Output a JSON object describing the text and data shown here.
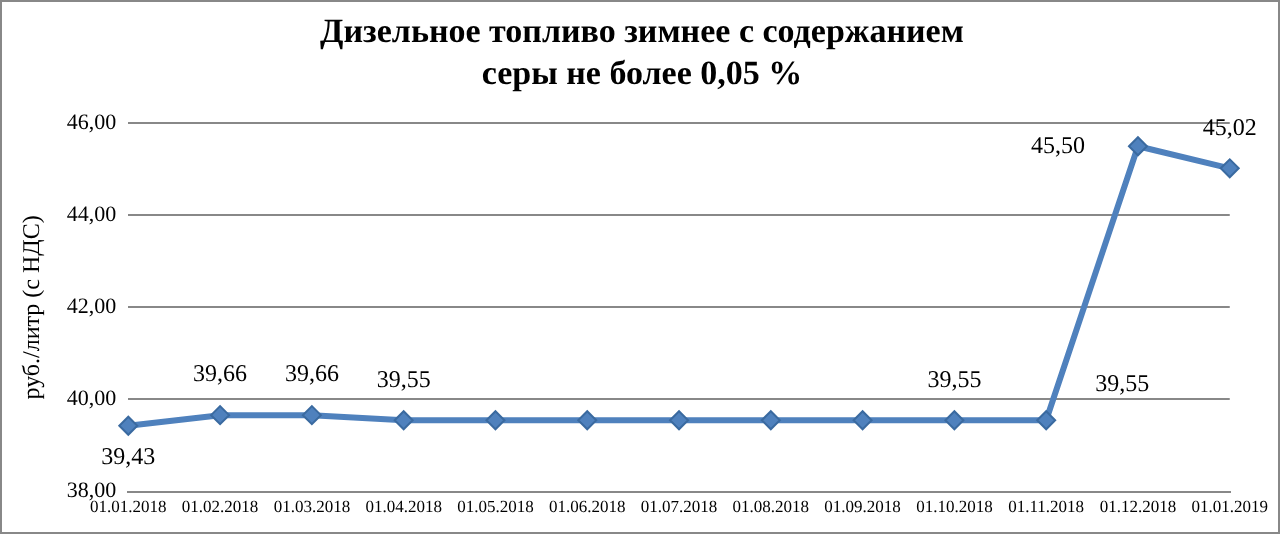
{
  "chart_data": {
    "type": "line",
    "title": "Дизельное топливо зимнее с содержанием серы не более 0,05 %",
    "ylabel": "руб./литр (с НДС)",
    "categories": [
      "01.01.2018",
      "01.02.2018",
      "01.03.2018",
      "01.04.2018",
      "01.05.2018",
      "01.06.2018",
      "01.07.2018",
      "01.08.2018",
      "01.09.2018",
      "01.10.2018",
      "01.11.2018",
      "01.12.2018",
      "01.01.2019"
    ],
    "series": [
      {
        "color": "#4f81bd",
        "values": [
          39.43,
          39.66,
          39.66,
          39.55,
          39.55,
          39.55,
          39.55,
          39.55,
          39.55,
          39.55,
          39.55,
          45.5,
          45.02
        ],
        "value_labels": [
          "39,43",
          "39,66",
          "39,66",
          "39,55",
          null,
          null,
          null,
          null,
          null,
          "39,55",
          "39,55",
          "45,50",
          "45,02"
        ]
      }
    ],
    "ylim": [
      38,
      46
    ],
    "yticks": [
      {
        "value": 38,
        "label": "38,00"
      },
      {
        "value": 40,
        "label": "40,00"
      },
      {
        "value": 42,
        "label": "42,00"
      },
      {
        "value": 44,
        "label": "44,00"
      },
      {
        "value": 46,
        "label": "46,00"
      }
    ],
    "grid": "y",
    "legend": false,
    "marker": "diamond",
    "line_style": "solid"
  }
}
